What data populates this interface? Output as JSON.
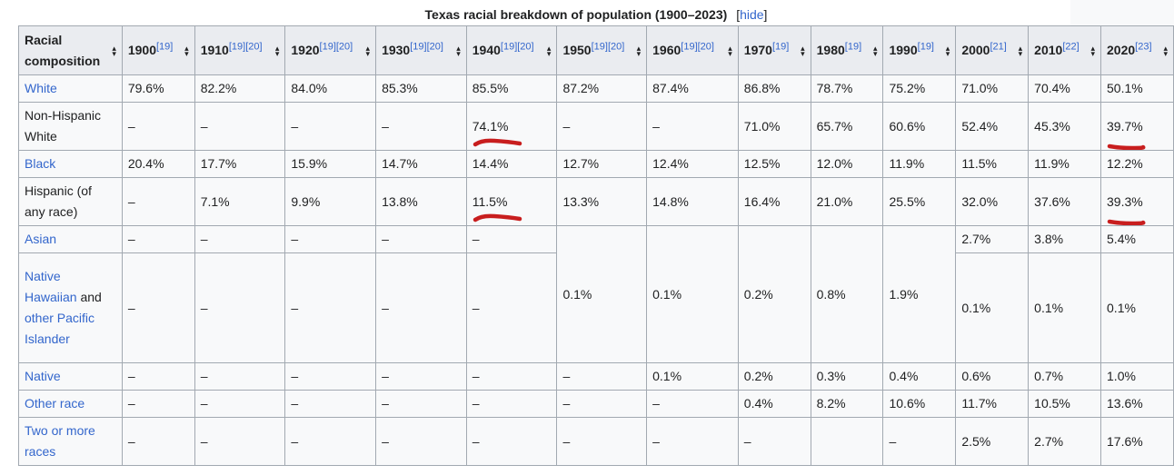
{
  "caption": {
    "title": "Texas racial breakdown of population (1900–2023)",
    "hide": "hide"
  },
  "header": {
    "first_col": "Racial composition",
    "years": [
      {
        "year": "1900",
        "refs": "[19]"
      },
      {
        "year": "1910",
        "refs": "[19][20]"
      },
      {
        "year": "1920",
        "refs": "[19][20]"
      },
      {
        "year": "1930",
        "refs": "[19][20]"
      },
      {
        "year": "1940",
        "refs": "[19][20]"
      },
      {
        "year": "1950",
        "refs": "[19][20]"
      },
      {
        "year": "1960",
        "refs": "[19][20]"
      },
      {
        "year": "1970",
        "refs": "[19]"
      },
      {
        "year": "1980",
        "refs": "[19]"
      },
      {
        "year": "1990",
        "refs": "[19]"
      },
      {
        "year": "2000",
        "refs": "[21]"
      },
      {
        "year": "2010",
        "refs": "[22]"
      },
      {
        "year": "2020",
        "refs": "[23]"
      }
    ]
  },
  "rows": {
    "white": {
      "label": "White",
      "values": [
        "79.6%",
        "82.2%",
        "84.0%",
        "85.3%",
        "85.5%",
        "87.2%",
        "87.4%",
        "86.8%",
        "78.7%",
        "75.2%",
        "71.0%",
        "70.4%",
        "50.1%"
      ]
    },
    "nhwhite": {
      "label": "Non-Hispanic White",
      "values": [
        "–",
        "–",
        "–",
        "–",
        "74.1%",
        "–",
        "–",
        "71.0%",
        "65.7%",
        "60.6%",
        "52.4%",
        "45.3%",
        "39.7%"
      ]
    },
    "black": {
      "label": "Black",
      "values": [
        "20.4%",
        "17.7%",
        "15.9%",
        "14.7%",
        "14.4%",
        "12.7%",
        "12.4%",
        "12.5%",
        "12.0%",
        "11.9%",
        "11.5%",
        "11.9%",
        "12.2%"
      ]
    },
    "hispanic": {
      "label_line1": "Hispanic (of",
      "label_line2": "any race)",
      "values": [
        "–",
        "7.1%",
        "9.9%",
        "13.8%",
        "11.5%",
        "13.3%",
        "14.8%",
        "16.4%",
        "21.0%",
        "25.5%",
        "32.0%",
        "37.6%",
        "39.3%"
      ]
    },
    "asian": {
      "label": "Asian",
      "values": [
        "–",
        "–",
        "–",
        "–",
        "–",
        "",
        "",
        "",
        "",
        "",
        "2.7%",
        "3.8%",
        "5.4%"
      ]
    },
    "nhpi": {
      "label_link1": "Native Hawaiian",
      "label_and": "and",
      "label_link2": "other Pacific Islander",
      "values": [
        "–",
        "–",
        "–",
        "–",
        "–",
        "",
        "",
        "",
        "",
        "",
        "0.1%",
        "0.1%",
        "0.1%"
      ]
    },
    "asian_nhpi_merged": [
      "0.1%",
      "0.1%",
      "0.2%",
      "0.8%",
      "1.9%"
    ],
    "native": {
      "label": "Native",
      "values": [
        "–",
        "–",
        "–",
        "–",
        "–",
        "–",
        "0.1%",
        "0.2%",
        "0.3%",
        "0.4%",
        "0.6%",
        "0.7%",
        "1.0%"
      ]
    },
    "other": {
      "label": "Other race",
      "values": [
        "–",
        "–",
        "–",
        "–",
        "–",
        "–",
        "–",
        "0.4%",
        "8.2%",
        "10.6%",
        "11.7%",
        "10.5%",
        "13.6%"
      ]
    },
    "two": {
      "label": "Two or more races",
      "values": [
        "–",
        "–",
        "–",
        "–",
        "–",
        "–",
        "–",
        "–",
        "",
        "–",
        "2.5%",
        "2.7%",
        "17.6%"
      ]
    }
  },
  "annotation_color": "#c81e1e",
  "link_color": "#3366cc"
}
